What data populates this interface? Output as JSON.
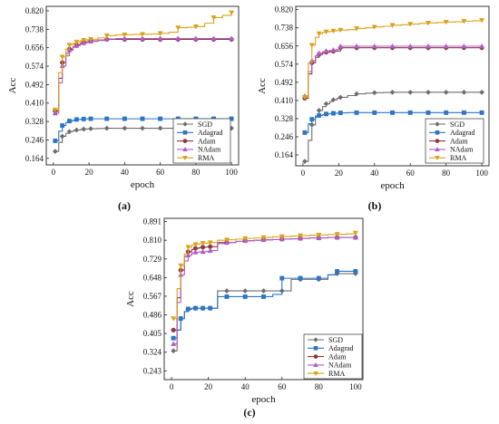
{
  "chart_data": [
    {
      "type": "line",
      "panel_label": "(a)",
      "xlabel": "epoch",
      "ylabel": "Acc",
      "xlim": [
        -4,
        104
      ],
      "ylim": [
        0.135,
        0.84
      ],
      "x_ticks": [
        0,
        20,
        40,
        60,
        80,
        100
      ],
      "y_ticks": [
        "0.164",
        "0.246",
        "0.328",
        "0.410",
        "0.492",
        "0.574",
        "0.656",
        "0.738",
        "0.820"
      ],
      "legend": "bottom-right",
      "x": [
        1,
        3,
        5,
        7,
        9,
        11,
        13,
        15,
        17,
        19,
        21,
        25,
        30,
        35,
        40,
        45,
        50,
        55,
        60,
        65,
        70,
        75,
        80,
        85,
        90,
        95,
        100
      ],
      "series": [
        {
          "name": "SGD",
          "color": "#6e6e6e",
          "marker": "diamond",
          "values": [
            0.195,
            0.235,
            0.262,
            0.275,
            0.283,
            0.287,
            0.29,
            0.292,
            0.294,
            0.295,
            0.296,
            0.297,
            0.298,
            0.298,
            0.298,
            0.298,
            0.298,
            0.298,
            0.298,
            0.298,
            0.298,
            0.298,
            0.298,
            0.298,
            0.298,
            0.298,
            0.298
          ]
        },
        {
          "name": "Adagrad",
          "color": "#2e75c4",
          "marker": "square",
          "values": [
            0.242,
            0.285,
            0.31,
            0.323,
            0.33,
            0.334,
            0.337,
            0.338,
            0.339,
            0.34,
            0.34,
            0.34,
            0.34,
            0.34,
            0.34,
            0.34,
            0.34,
            0.34,
            0.34,
            0.34,
            0.34,
            0.34,
            0.34,
            0.34,
            0.34,
            0.34,
            0.34
          ]
        },
        {
          "name": "Adam",
          "color": "#8b3a3a",
          "marker": "circle",
          "values": [
            0.375,
            0.52,
            0.59,
            0.63,
            0.65,
            0.66,
            0.668,
            0.675,
            0.68,
            0.683,
            0.686,
            0.69,
            0.693,
            0.693,
            0.693,
            0.693,
            0.693,
            0.693,
            0.693,
            0.693,
            0.693,
            0.693,
            0.693,
            0.693,
            0.693,
            0.693,
            0.693
          ]
        },
        {
          "name": "NAdam",
          "color": "#b05cc7",
          "marker": "triangle-up",
          "values": [
            0.365,
            0.5,
            0.575,
            0.62,
            0.645,
            0.658,
            0.665,
            0.672,
            0.677,
            0.681,
            0.684,
            0.688,
            0.695,
            0.697,
            0.697,
            0.697,
            0.697,
            0.697,
            0.697,
            0.697,
            0.697,
            0.697,
            0.697,
            0.697,
            0.697,
            0.697,
            0.697
          ]
        },
        {
          "name": "RMA",
          "color": "#d9a21b",
          "marker": "triangle-down",
          "values": [
            0.38,
            0.545,
            0.615,
            0.65,
            0.668,
            0.676,
            0.682,
            0.687,
            0.69,
            0.692,
            0.694,
            0.7,
            0.71,
            0.713,
            0.714,
            0.715,
            0.716,
            0.717,
            0.72,
            0.725,
            0.745,
            0.747,
            0.75,
            0.765,
            0.79,
            0.8,
            0.812
          ]
        }
      ]
    },
    {
      "type": "line",
      "panel_label": "(b)",
      "xlabel": "epoch",
      "ylabel": "Acc",
      "xlim": [
        -4,
        104
      ],
      "ylim": [
        0.115,
        0.835
      ],
      "x_ticks": [
        0,
        20,
        40,
        60,
        80,
        100
      ],
      "y_ticks": [
        "0.164",
        "0.246",
        "0.328",
        "0.410",
        "0.492",
        "0.574",
        "0.656",
        "0.738",
        "0.820"
      ],
      "legend": "bottom-right",
      "x": [
        1,
        3,
        5,
        7,
        9,
        11,
        13,
        15,
        17,
        19,
        21,
        25,
        30,
        35,
        40,
        45,
        50,
        55,
        60,
        65,
        70,
        75,
        80,
        85,
        90,
        95,
        100
      ],
      "series": [
        {
          "name": "SGD",
          "color": "#6e6e6e",
          "marker": "diamond",
          "values": [
            0.135,
            0.23,
            0.3,
            0.34,
            0.365,
            0.382,
            0.395,
            0.405,
            0.413,
            0.419,
            0.424,
            0.432,
            0.44,
            0.443,
            0.445,
            0.446,
            0.447,
            0.447,
            0.447,
            0.447,
            0.447,
            0.447,
            0.447,
            0.447,
            0.447,
            0.447,
            0.447
          ]
        },
        {
          "name": "Adagrad",
          "color": "#2e75c4",
          "marker": "square",
          "values": [
            0.265,
            0.305,
            0.325,
            0.336,
            0.342,
            0.346,
            0.349,
            0.351,
            0.352,
            0.353,
            0.354,
            0.355,
            0.355,
            0.355,
            0.355,
            0.355,
            0.355,
            0.355,
            0.355,
            0.355,
            0.355,
            0.355,
            0.355,
            0.355,
            0.355,
            0.355,
            0.355
          ]
        },
        {
          "name": "Adam",
          "color": "#8b3a3a",
          "marker": "circle",
          "values": [
            0.42,
            0.53,
            0.58,
            0.605,
            0.618,
            0.624,
            0.628,
            0.63,
            0.632,
            0.633,
            0.648,
            0.648,
            0.648,
            0.648,
            0.648,
            0.648,
            0.648,
            0.648,
            0.648,
            0.648,
            0.648,
            0.648,
            0.648,
            0.648,
            0.648,
            0.648,
            0.648
          ]
        },
        {
          "name": "NAdam",
          "color": "#b05cc7",
          "marker": "triangle-up",
          "values": [
            0.43,
            0.54,
            0.59,
            0.612,
            0.624,
            0.63,
            0.634,
            0.636,
            0.638,
            0.64,
            0.655,
            0.655,
            0.655,
            0.655,
            0.655,
            0.655,
            0.655,
            0.655,
            0.655,
            0.655,
            0.655,
            0.655,
            0.655,
            0.655,
            0.655,
            0.655,
            0.655
          ]
        },
        {
          "name": "RMA",
          "color": "#d9a21b",
          "marker": "triangle-down",
          "values": [
            0.425,
            0.58,
            0.66,
            0.695,
            0.712,
            0.718,
            0.72,
            0.722,
            0.724,
            0.726,
            0.728,
            0.73,
            0.735,
            0.738,
            0.742,
            0.745,
            0.75,
            0.752,
            0.755,
            0.758,
            0.76,
            0.762,
            0.764,
            0.765,
            0.768,
            0.77,
            0.772
          ]
        }
      ]
    },
    {
      "type": "line",
      "panel_label": "(c)",
      "xlabel": "epoch",
      "ylabel": "Acc",
      "xlim": [
        -4,
        104
      ],
      "ylim": [
        0.205,
        0.905
      ],
      "x_ticks": [
        0,
        20,
        40,
        60,
        80,
        100
      ],
      "y_ticks": [
        "0.243",
        "0.324",
        "0.405",
        "0.486",
        "0.567",
        "0.648",
        "0.729",
        "0.810",
        "0.891"
      ],
      "legend": "bottom-right",
      "x": [
        1,
        3,
        5,
        7,
        9,
        11,
        13,
        15,
        17,
        19,
        21,
        25,
        30,
        35,
        40,
        45,
        50,
        55,
        60,
        65,
        70,
        75,
        80,
        85,
        90,
        95,
        100
      ],
      "series": [
        {
          "name": "SGD",
          "color": "#6e6e6e",
          "marker": "diamond",
          "values": [
            0.33,
            0.42,
            0.47,
            0.5,
            0.51,
            0.515,
            0.515,
            0.515,
            0.515,
            0.515,
            0.515,
            0.59,
            0.59,
            0.59,
            0.59,
            0.59,
            0.59,
            0.59,
            0.59,
            0.64,
            0.64,
            0.64,
            0.64,
            0.66,
            0.665,
            0.665,
            0.665
          ]
        },
        {
          "name": "Adagrad",
          "color": "#2e75c4",
          "marker": "square",
          "values": [
            0.385,
            0.42,
            0.47,
            0.5,
            0.512,
            0.515,
            0.515,
            0.515,
            0.515,
            0.515,
            0.515,
            0.565,
            0.565,
            0.565,
            0.565,
            0.565,
            0.565,
            0.575,
            0.645,
            0.645,
            0.645,
            0.645,
            0.645,
            0.66,
            0.675,
            0.675,
            0.675
          ]
        },
        {
          "name": "Adam",
          "color": "#8b3a3a",
          "marker": "circle",
          "values": [
            0.42,
            0.56,
            0.68,
            0.74,
            0.76,
            0.77,
            0.775,
            0.778,
            0.78,
            0.781,
            0.782,
            0.8,
            0.8,
            0.805,
            0.808,
            0.81,
            0.812,
            0.813,
            0.815,
            0.816,
            0.818,
            0.82,
            0.82,
            0.822,
            0.822,
            0.822,
            0.822
          ]
        },
        {
          "name": "NAdam",
          "color": "#b05cc7",
          "marker": "triangle-up",
          "values": [
            0.36,
            0.54,
            0.66,
            0.72,
            0.745,
            0.755,
            0.758,
            0.76,
            0.76,
            0.762,
            0.765,
            0.795,
            0.8,
            0.805,
            0.808,
            0.81,
            0.812,
            0.813,
            0.815,
            0.816,
            0.818,
            0.82,
            0.82,
            0.822,
            0.822,
            0.822,
            0.822
          ]
        },
        {
          "name": "RMA",
          "color": "#d9a21b",
          "marker": "triangle-down",
          "values": [
            0.47,
            0.6,
            0.7,
            0.75,
            0.78,
            0.79,
            0.792,
            0.795,
            0.797,
            0.798,
            0.8,
            0.81,
            0.812,
            0.815,
            0.818,
            0.82,
            0.822,
            0.825,
            0.826,
            0.828,
            0.83,
            0.832,
            0.833,
            0.835,
            0.836,
            0.838,
            0.842
          ]
        }
      ]
    }
  ]
}
